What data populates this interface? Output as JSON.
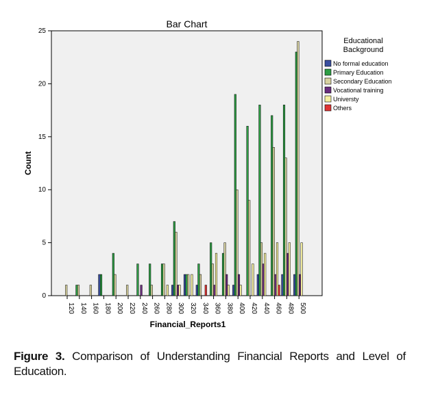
{
  "chart_data": {
    "type": "bar",
    "title": "Bar Chart",
    "xlabel": "Financial_Reports1",
    "ylabel": "Count",
    "ylim": [
      0,
      25
    ],
    "yticks": [
      0,
      5,
      10,
      15,
      20,
      25
    ],
    "grid": false,
    "legend_position": "right",
    "legend_title": [
      "Educational",
      "Background"
    ],
    "categories": [
      "120",
      "140",
      "160",
      "180",
      "200",
      "220",
      "240",
      "260",
      "280",
      "300",
      "320",
      "340",
      "360",
      "380",
      "400",
      "420",
      "440",
      "460",
      "480",
      "500"
    ],
    "series": [
      {
        "name": "No formal education",
        "color": "#3a4fa0",
        "values": [
          0,
          0,
          0,
          2,
          0,
          0,
          0,
          0,
          0,
          1,
          2,
          1,
          0,
          0,
          1,
          0,
          2,
          0,
          2,
          2
        ]
      },
      {
        "name": "Primary Education",
        "color": "#2e9e45",
        "values": [
          0,
          1,
          0,
          2,
          4,
          0,
          3,
          3,
          3,
          7,
          2,
          3,
          5,
          4,
          19,
          16,
          18,
          17,
          18,
          23
        ]
      },
      {
        "name": "Secondary Education",
        "color": "#d8d2a0",
        "values": [
          1,
          1,
          1,
          0,
          2,
          1,
          0,
          1,
          3,
          6,
          2,
          2,
          3,
          5,
          10,
          9,
          5,
          14,
          13,
          24
        ]
      },
      {
        "name": "Vocational training",
        "color": "#6a2d7e",
        "values": [
          0,
          0,
          0,
          0,
          0,
          0,
          1,
          0,
          0,
          1,
          0,
          0,
          1,
          2,
          2,
          0,
          3,
          2,
          4,
          2
        ]
      },
      {
        "name": "Universty",
        "color": "#f5f0a0",
        "values": [
          0,
          0,
          0,
          0,
          0,
          0,
          0,
          0,
          1,
          1,
          2,
          0,
          4,
          1,
          1,
          3,
          4,
          5,
          5,
          5
        ]
      },
      {
        "name": "Others",
        "color": "#e03535",
        "values": [
          0,
          0,
          0,
          0,
          0,
          0,
          0,
          0,
          0,
          0,
          0,
          1,
          0,
          0,
          0,
          0,
          0,
          1,
          0,
          0
        ]
      }
    ]
  },
  "caption": {
    "label": "Figure 3.",
    "text": "Comparison of Understanding Financial Reports and Level of Education."
  }
}
